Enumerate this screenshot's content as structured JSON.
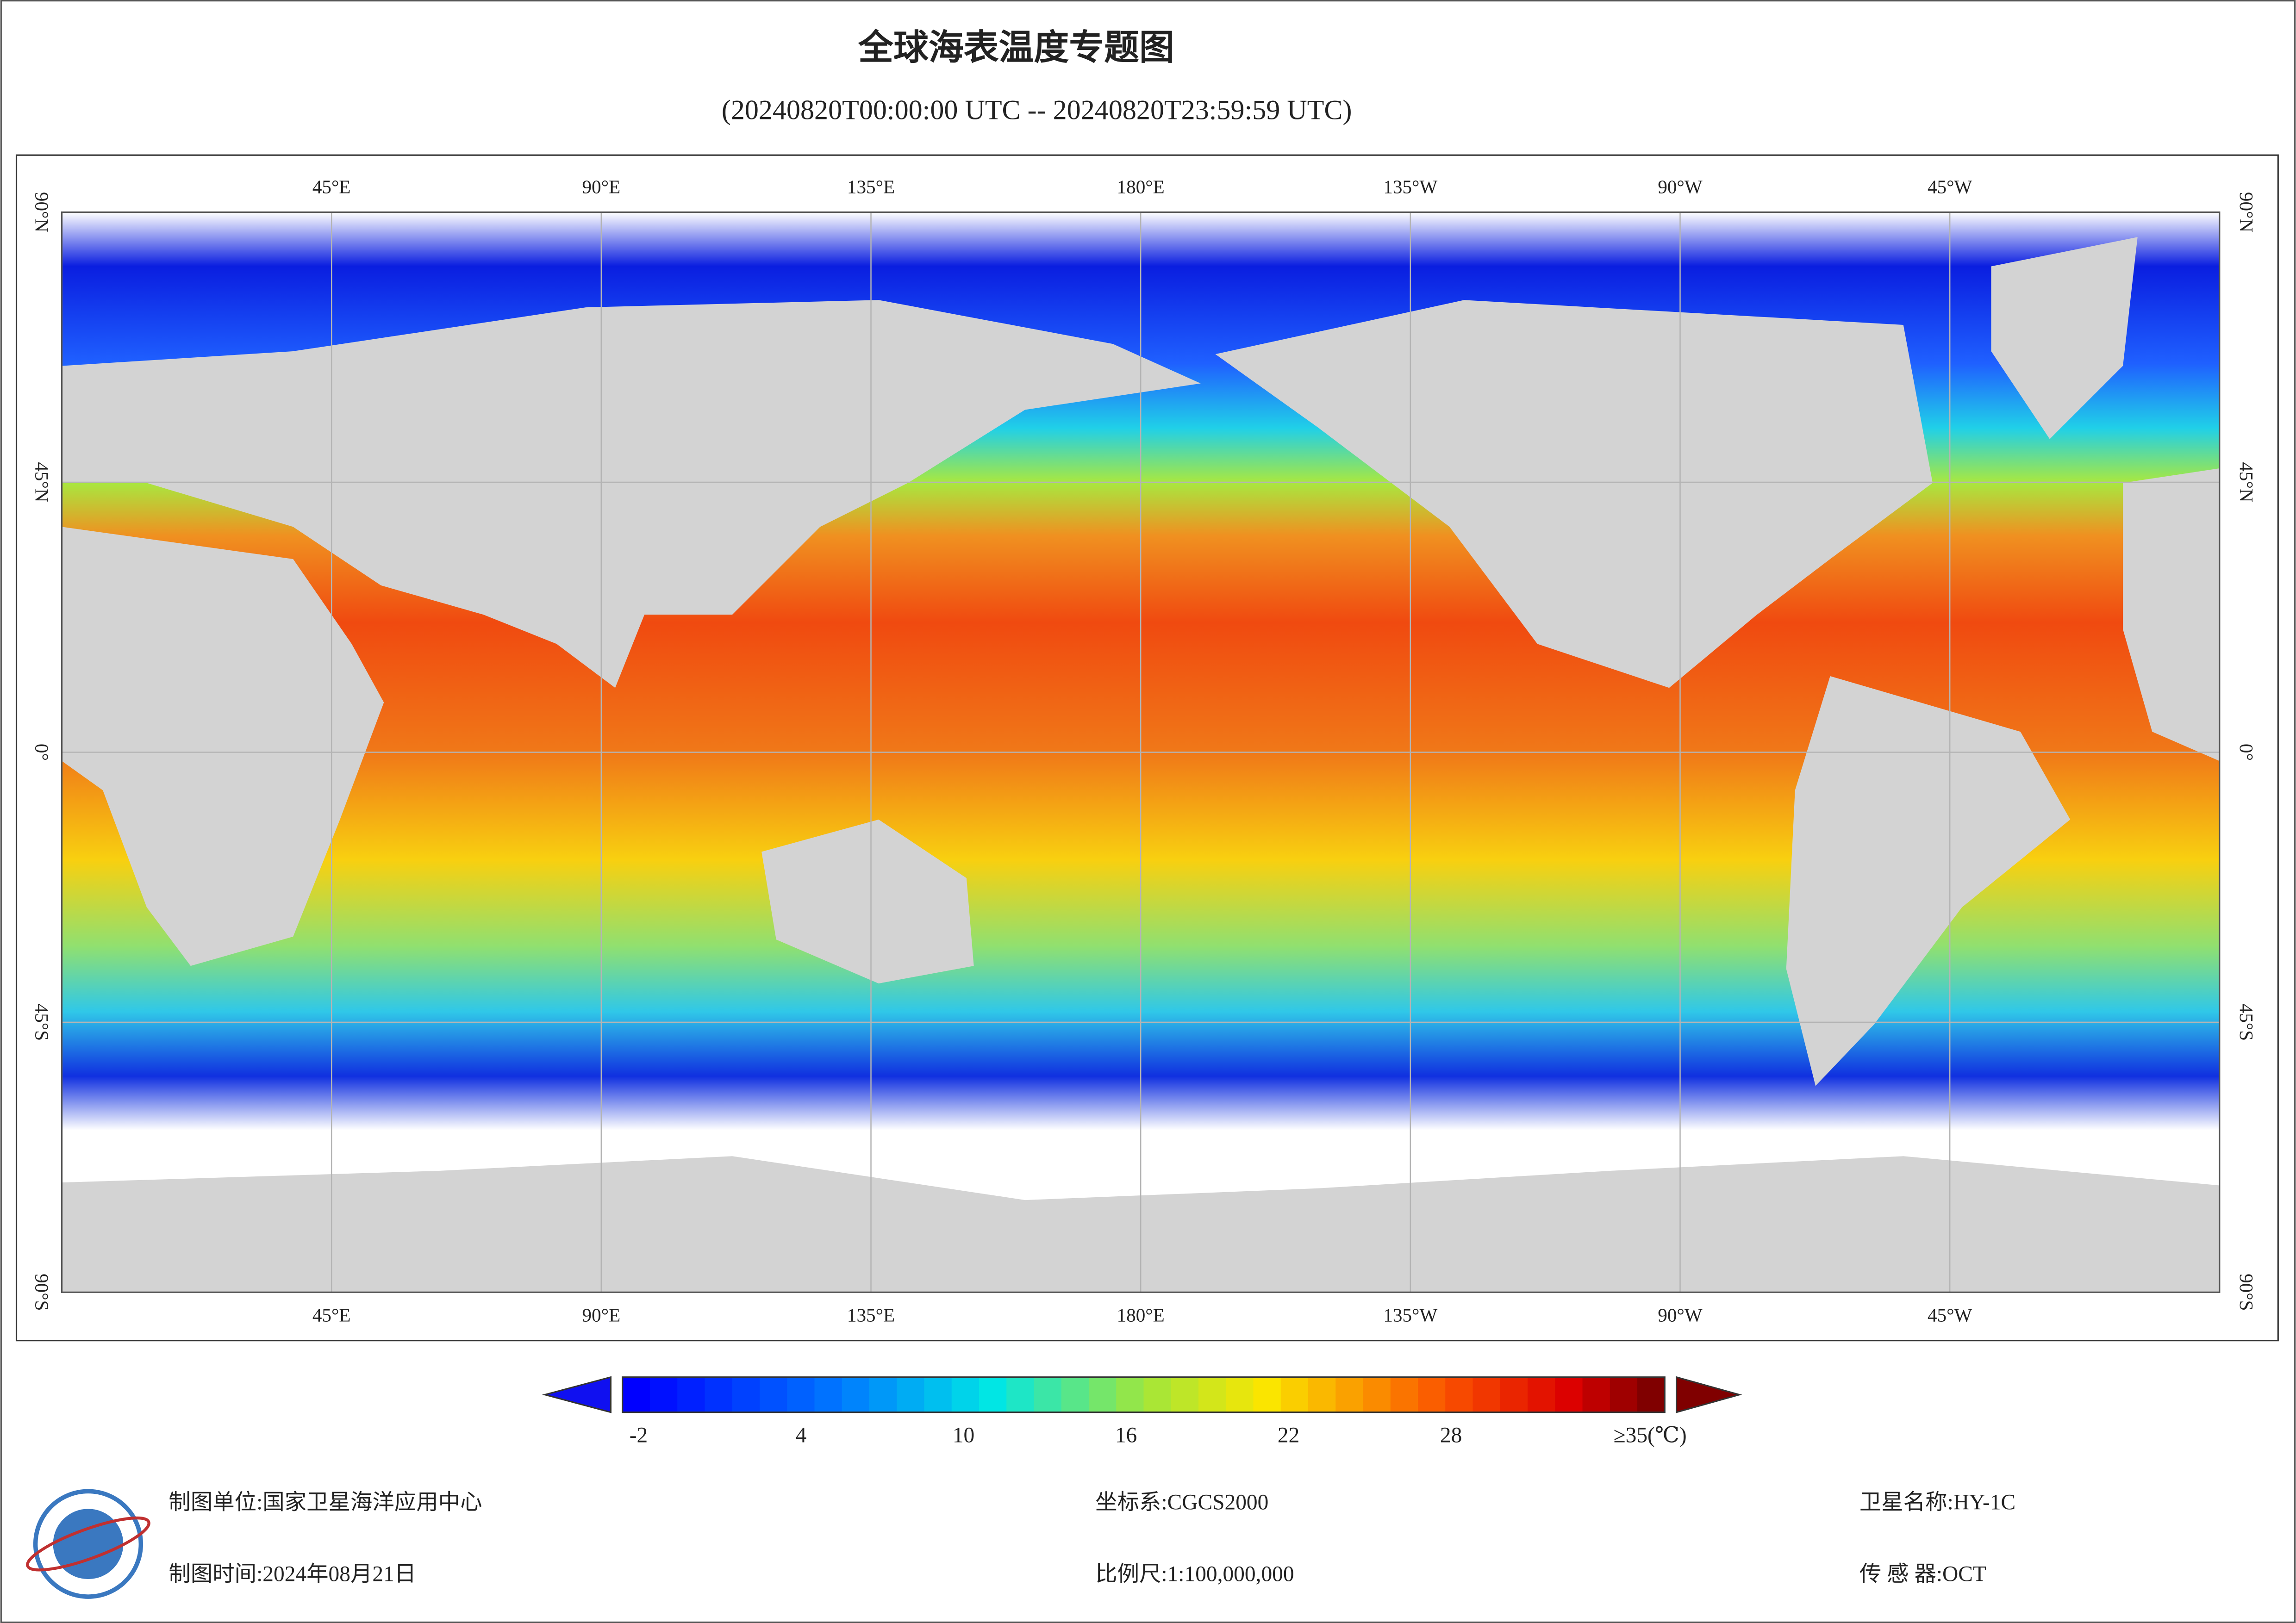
{
  "header": {
    "title": "全球海表温度专题图",
    "subtitle": "(20240820T00:00:00 UTC -- 20240820T23:59:59 UTC)"
  },
  "map": {
    "longitude_labels": [
      "45°E",
      "90°E",
      "135°E",
      "180°E",
      "135°W",
      "90°W",
      "45°W"
    ],
    "latitude_labels": [
      "90°N",
      "45°N",
      "0°",
      "45°S",
      "90°S"
    ]
  },
  "colorbar": {
    "ticks": [
      -2,
      4,
      10,
      16,
      22,
      28
    ],
    "max_label": "≥35(℃)"
  },
  "footer": {
    "unit": "制图单位:国家卫星海洋应用中心",
    "date": "制图时间:2024年08月21日",
    "crs": "坐标系:CGCS2000",
    "scale": "比例尺:1:100,000,000",
    "satellite": "卫星名称:HY-1C",
    "sensor": "传 感 器:OCT"
  }
}
